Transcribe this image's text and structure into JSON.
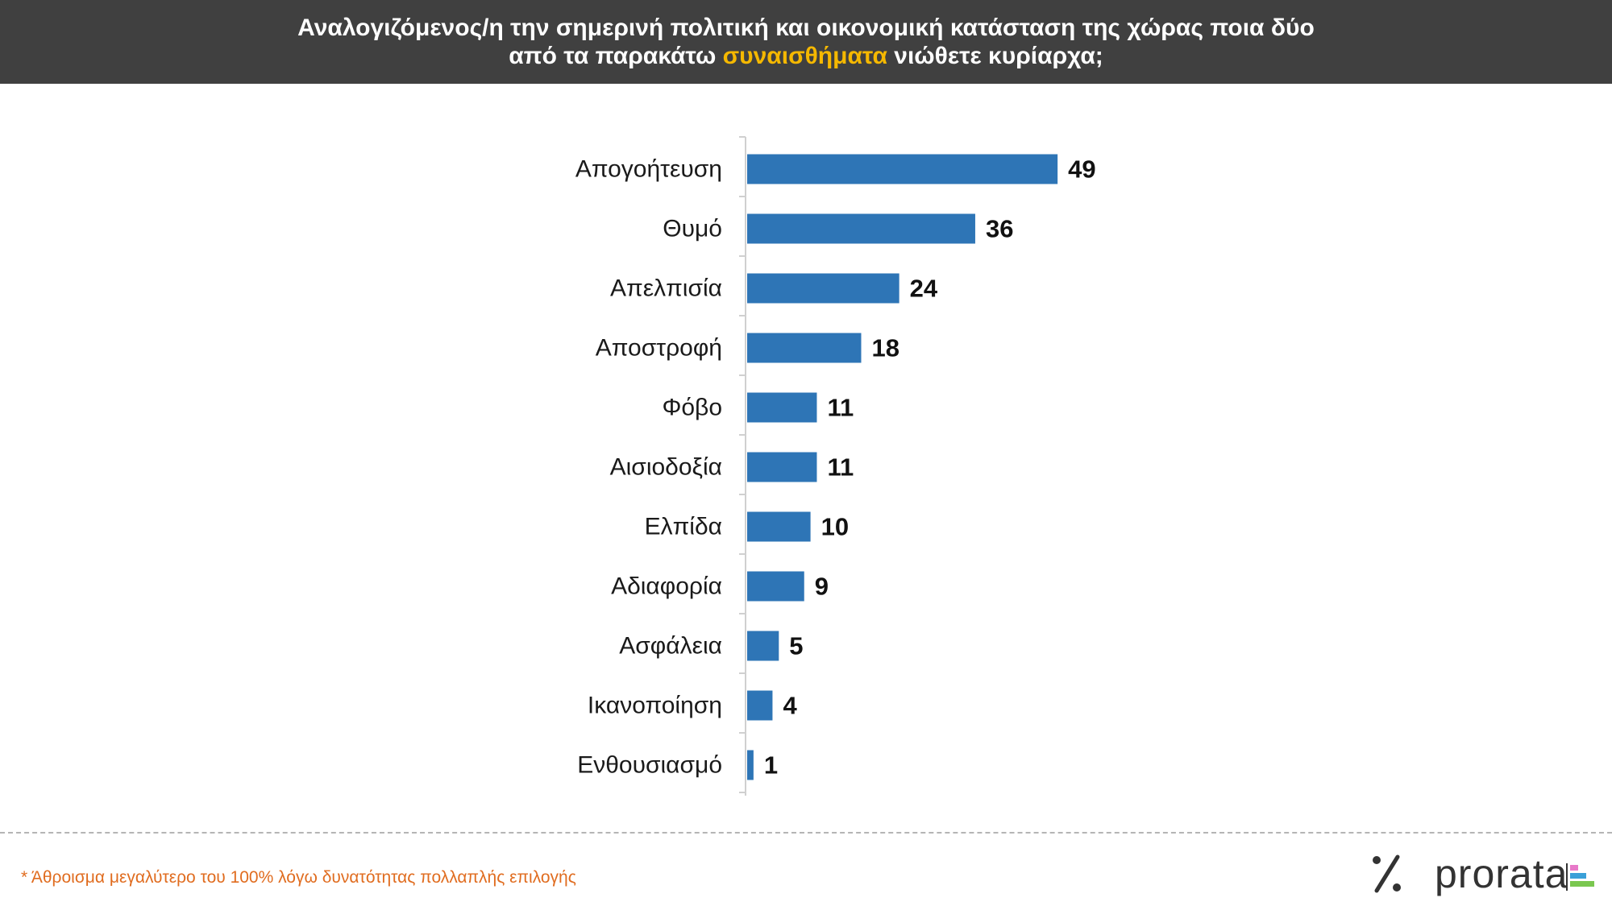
{
  "header": {
    "line1": "Αναλογιζόμενος/η την σημερινή πολιτική και οικονομική κατάσταση της χώρας ποια δύο",
    "line2_pre": "από τα παρακάτω ",
    "line2_highlight": "συναισθήματα",
    "line2_post": " νιώθετε κυρίαρχα;",
    "highlight_color": "#f5b800"
  },
  "chart_data": {
    "type": "bar",
    "orientation": "horizontal",
    "categories": [
      "Απογοήτευση",
      "Θυμό",
      "Απελπισία",
      "Αποστροφή",
      "Φόβο",
      "Αισιοδοξία",
      "Ελπίδα",
      "Αδιαφορία",
      "Ασφάλεια",
      "Ικανοποίηση",
      "Ενθουσιασμό"
    ],
    "values": [
      49,
      36,
      24,
      18,
      11,
      11,
      10,
      9,
      5,
      4,
      1
    ],
    "title": "",
    "xlabel": "",
    "ylabel": "",
    "xlim": [
      0,
      100
    ],
    "grid": false,
    "legend": "none",
    "bar_color": "#2e75b6"
  },
  "footnote": "* Άθροισμα μεγαλύτερο του 100% λόγω δυνατότητας πολλαπλής επιλογής",
  "logo": {
    "symbol": "%",
    "text": "prorata",
    "accent_colors": [
      "#e879c9",
      "#3aa0d8",
      "#7ac74f"
    ]
  }
}
